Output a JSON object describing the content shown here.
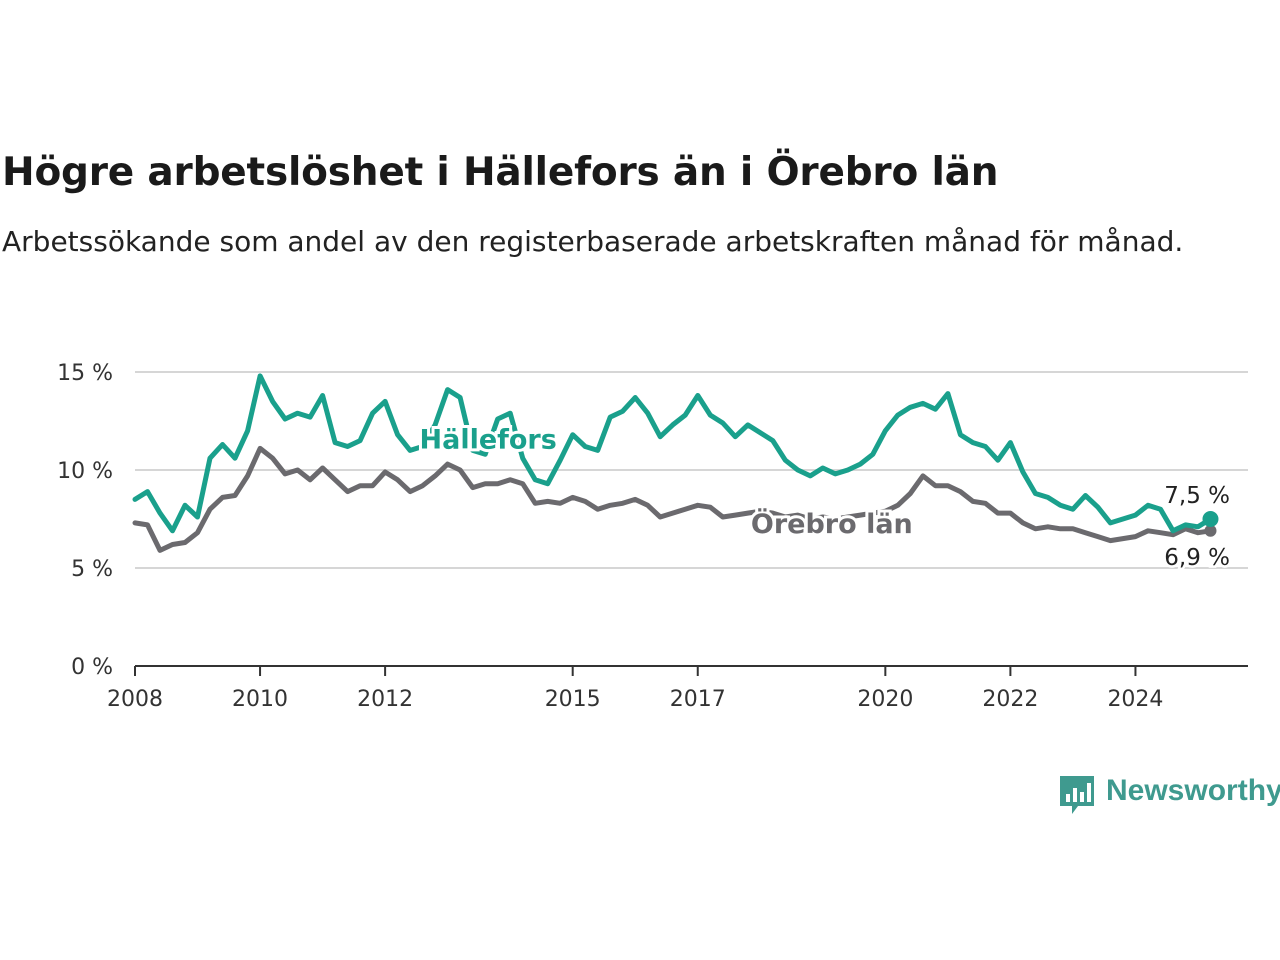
{
  "title": "Högre arbetslöshet i Hällefors än i Örebro län",
  "subtitle": "Arbetssökande som andel av den registerbaserade arbetskraften månad för månad.",
  "brand": {
    "name": "Newsworthy",
    "color": "#3f9a8f"
  },
  "chart_data": {
    "type": "line",
    "y_ticks": [
      "0 %",
      "5 %",
      "10 %",
      "15 %"
    ],
    "ylim": [
      0,
      15
    ],
    "xlim": [
      2008,
      2025.8
    ],
    "x_ticks": [
      2008,
      2010,
      2012,
      2015,
      2017,
      2020,
      2022,
      2024
    ],
    "grid": true,
    "series": [
      {
        "name": "Hällefors",
        "color": "#1aa08c",
        "end_label": "7,5 %",
        "points": [
          [
            2008.0,
            8.5
          ],
          [
            2008.2,
            8.9
          ],
          [
            2008.4,
            7.8
          ],
          [
            2008.6,
            6.9
          ],
          [
            2008.8,
            8.2
          ],
          [
            2009.0,
            7.6
          ],
          [
            2009.2,
            10.6
          ],
          [
            2009.4,
            11.3
          ],
          [
            2009.6,
            10.6
          ],
          [
            2009.8,
            12.0
          ],
          [
            2010.0,
            14.8
          ],
          [
            2010.2,
            13.5
          ],
          [
            2010.4,
            12.6
          ],
          [
            2010.6,
            12.9
          ],
          [
            2010.8,
            12.7
          ],
          [
            2011.0,
            13.8
          ],
          [
            2011.2,
            11.4
          ],
          [
            2011.4,
            11.2
          ],
          [
            2011.6,
            11.5
          ],
          [
            2011.8,
            12.9
          ],
          [
            2012.0,
            13.5
          ],
          [
            2012.2,
            11.8
          ],
          [
            2012.4,
            11.0
          ],
          [
            2012.6,
            11.2
          ],
          [
            2012.8,
            12.3
          ],
          [
            2013.0,
            14.1
          ],
          [
            2013.2,
            13.7
          ],
          [
            2013.4,
            11.0
          ],
          [
            2013.6,
            10.8
          ],
          [
            2013.8,
            12.6
          ],
          [
            2014.0,
            12.9
          ],
          [
            2014.2,
            10.6
          ],
          [
            2014.4,
            9.5
          ],
          [
            2014.6,
            9.3
          ],
          [
            2014.8,
            10.5
          ],
          [
            2015.0,
            11.8
          ],
          [
            2015.2,
            11.2
          ],
          [
            2015.4,
            11.0
          ],
          [
            2015.6,
            12.7
          ],
          [
            2015.8,
            13.0
          ],
          [
            2016.0,
            13.7
          ],
          [
            2016.2,
            12.9
          ],
          [
            2016.4,
            11.7
          ],
          [
            2016.6,
            12.3
          ],
          [
            2016.8,
            12.8
          ],
          [
            2017.0,
            13.8
          ],
          [
            2017.2,
            12.8
          ],
          [
            2017.4,
            12.4
          ],
          [
            2017.6,
            11.7
          ],
          [
            2017.8,
            12.3
          ],
          [
            2018.0,
            11.9
          ],
          [
            2018.2,
            11.5
          ],
          [
            2018.4,
            10.5
          ],
          [
            2018.6,
            10.0
          ],
          [
            2018.8,
            9.7
          ],
          [
            2019.0,
            10.1
          ],
          [
            2019.2,
            9.8
          ],
          [
            2019.4,
            10.0
          ],
          [
            2019.6,
            10.3
          ],
          [
            2019.8,
            10.8
          ],
          [
            2020.0,
            12.0
          ],
          [
            2020.2,
            12.8
          ],
          [
            2020.4,
            13.2
          ],
          [
            2020.6,
            13.4
          ],
          [
            2020.8,
            13.1
          ],
          [
            2021.0,
            13.9
          ],
          [
            2021.2,
            11.8
          ],
          [
            2021.4,
            11.4
          ],
          [
            2021.6,
            11.2
          ],
          [
            2021.8,
            10.5
          ],
          [
            2022.0,
            11.4
          ],
          [
            2022.2,
            9.9
          ],
          [
            2022.4,
            8.8
          ],
          [
            2022.6,
            8.6
          ],
          [
            2022.8,
            8.2
          ],
          [
            2023.0,
            8.0
          ],
          [
            2023.2,
            8.7
          ],
          [
            2023.4,
            8.1
          ],
          [
            2023.6,
            7.3
          ],
          [
            2023.8,
            7.5
          ],
          [
            2024.0,
            7.7
          ],
          [
            2024.2,
            8.2
          ],
          [
            2024.4,
            8.0
          ],
          [
            2024.6,
            6.9
          ],
          [
            2024.8,
            7.2
          ],
          [
            2025.0,
            7.1
          ],
          [
            2025.2,
            7.5
          ]
        ]
      },
      {
        "name": "Örebro län",
        "color": "#6b6a6e",
        "end_label": "6,9 %",
        "points": [
          [
            2008.0,
            7.3
          ],
          [
            2008.2,
            7.2
          ],
          [
            2008.4,
            5.9
          ],
          [
            2008.6,
            6.2
          ],
          [
            2008.8,
            6.3
          ],
          [
            2009.0,
            6.8
          ],
          [
            2009.2,
            8.0
          ],
          [
            2009.4,
            8.6
          ],
          [
            2009.6,
            8.7
          ],
          [
            2009.8,
            9.7
          ],
          [
            2010.0,
            11.1
          ],
          [
            2010.2,
            10.6
          ],
          [
            2010.4,
            9.8
          ],
          [
            2010.6,
            10.0
          ],
          [
            2010.8,
            9.5
          ],
          [
            2011.0,
            10.1
          ],
          [
            2011.2,
            9.5
          ],
          [
            2011.4,
            8.9
          ],
          [
            2011.6,
            9.2
          ],
          [
            2011.8,
            9.2
          ],
          [
            2012.0,
            9.9
          ],
          [
            2012.2,
            9.5
          ],
          [
            2012.4,
            8.9
          ],
          [
            2012.6,
            9.2
          ],
          [
            2012.8,
            9.7
          ],
          [
            2013.0,
            10.3
          ],
          [
            2013.2,
            10.0
          ],
          [
            2013.4,
            9.1
          ],
          [
            2013.6,
            9.3
          ],
          [
            2013.8,
            9.3
          ],
          [
            2014.0,
            9.5
          ],
          [
            2014.2,
            9.3
          ],
          [
            2014.4,
            8.3
          ],
          [
            2014.6,
            8.4
          ],
          [
            2014.8,
            8.3
          ],
          [
            2015.0,
            8.6
          ],
          [
            2015.2,
            8.4
          ],
          [
            2015.4,
            8.0
          ],
          [
            2015.6,
            8.2
          ],
          [
            2015.8,
            8.3
          ],
          [
            2016.0,
            8.5
          ],
          [
            2016.2,
            8.2
          ],
          [
            2016.4,
            7.6
          ],
          [
            2016.6,
            7.8
          ],
          [
            2016.8,
            8.0
          ],
          [
            2017.0,
            8.2
          ],
          [
            2017.2,
            8.1
          ],
          [
            2017.4,
            7.6
          ],
          [
            2017.6,
            7.7
          ],
          [
            2017.8,
            7.8
          ],
          [
            2018.0,
            7.9
          ],
          [
            2018.2,
            7.8
          ],
          [
            2018.4,
            7.6
          ],
          [
            2018.6,
            7.7
          ],
          [
            2018.8,
            7.5
          ],
          [
            2019.0,
            7.6
          ],
          [
            2019.2,
            7.5
          ],
          [
            2019.4,
            7.6
          ],
          [
            2019.6,
            7.7
          ],
          [
            2019.8,
            7.8
          ],
          [
            2020.0,
            7.9
          ],
          [
            2020.2,
            8.2
          ],
          [
            2020.4,
            8.8
          ],
          [
            2020.6,
            9.7
          ],
          [
            2020.8,
            9.2
          ],
          [
            2021.0,
            9.2
          ],
          [
            2021.2,
            8.9
          ],
          [
            2021.4,
            8.4
          ],
          [
            2021.6,
            8.3
          ],
          [
            2021.8,
            7.8
          ],
          [
            2022.0,
            7.8
          ],
          [
            2022.2,
            7.3
          ],
          [
            2022.4,
            7.0
          ],
          [
            2022.6,
            7.1
          ],
          [
            2022.8,
            7.0
          ],
          [
            2023.0,
            7.0
          ],
          [
            2023.2,
            6.8
          ],
          [
            2023.4,
            6.6
          ],
          [
            2023.6,
            6.4
          ],
          [
            2023.8,
            6.5
          ],
          [
            2024.0,
            6.6
          ],
          [
            2024.2,
            6.9
          ],
          [
            2024.4,
            6.8
          ],
          [
            2024.6,
            6.7
          ],
          [
            2024.8,
            7.0
          ],
          [
            2025.0,
            6.8
          ],
          [
            2025.2,
            6.9
          ]
        ]
      }
    ]
  }
}
